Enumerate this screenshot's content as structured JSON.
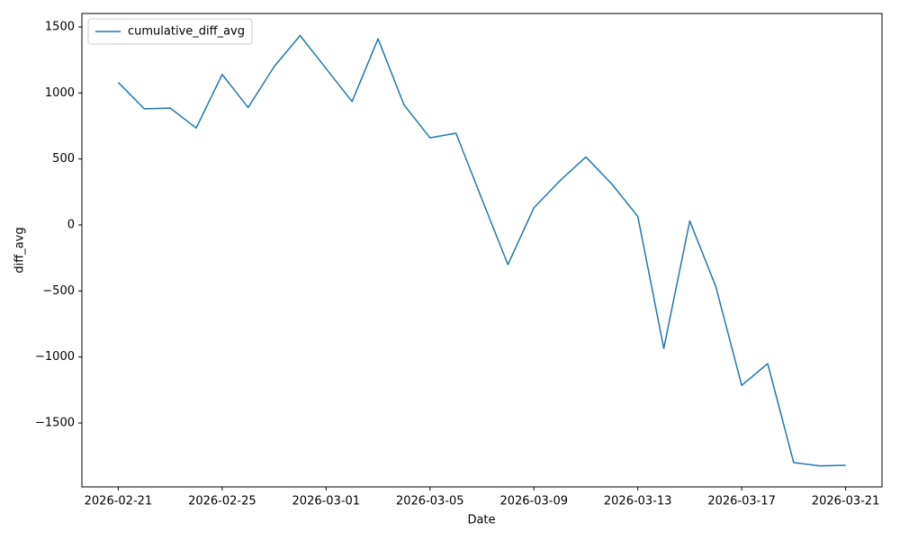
{
  "chart_data": {
    "type": "line",
    "x": [
      "2026-02-21",
      "2026-02-22",
      "2026-02-23",
      "2026-02-24",
      "2026-02-25",
      "2026-02-26",
      "2026-02-27",
      "2026-02-28",
      "2026-03-01",
      "2026-03-02",
      "2026-03-03",
      "2026-03-04",
      "2026-03-05",
      "2026-03-06",
      "2026-03-07",
      "2026-03-08",
      "2026-03-09",
      "2026-03-10",
      "2026-03-11",
      "2026-03-12",
      "2026-03-13",
      "2026-03-14",
      "2026-03-15",
      "2026-03-16",
      "2026-03-17",
      "2026-03-18",
      "2026-03-19",
      "2026-03-20",
      "2026-03-21"
    ],
    "series": [
      {
        "name": "cumulative_diff_avg",
        "color": "#1f77b4",
        "values": [
          1080,
          880,
          885,
          735,
          1140,
          890,
          1200,
          1435,
          1185,
          935,
          1410,
          910,
          660,
          695,
          195,
          -300,
          130,
          335,
          515,
          310,
          65,
          -935,
          30,
          -465,
          -1215,
          -1050,
          -1800,
          -1825,
          -1820
        ]
      }
    ],
    "xlabel": "Date",
    "ylabel": "diff_avg",
    "xlim": [
      "2026-02-19T14:24",
      "2026-03-22T09:36"
    ],
    "xticks": [
      "2026-02-21",
      "2026-02-25",
      "2026-03-01",
      "2026-03-05",
      "2026-03-09",
      "2026-03-13",
      "2026-03-17",
      "2026-03-21"
    ],
    "ylim": [
      -1984,
      1602
    ],
    "yticks": [
      {
        "value": -1500,
        "label": "−1500"
      },
      {
        "value": -1000,
        "label": "−1000"
      },
      {
        "value": -500,
        "label": "−500"
      },
      0,
      500,
      1000,
      1500
    ],
    "legend": "upper left",
    "grid": false
  }
}
